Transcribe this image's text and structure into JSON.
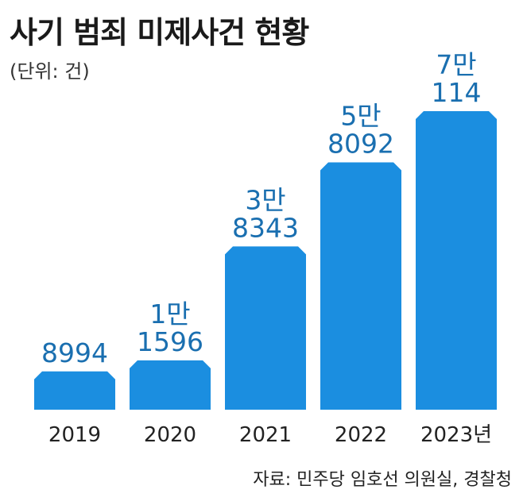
{
  "header": {
    "title": "사기 범죄 미제사건 현황",
    "unit": "(단위: 건)"
  },
  "footer": {
    "source": "자료: 민주당 임호선 의원실, 경찰청"
  },
  "colors": {
    "bar": "#1b8ee0",
    "value_text": "#1a6fb0"
  },
  "chart_data": {
    "type": "bar",
    "title": "사기 범죄 미제사건 현황",
    "unit": "(단위: 건)",
    "categories": [
      "2019",
      "2020",
      "2021",
      "2022",
      "2023년"
    ],
    "values": [
      8994,
      11596,
      38343,
      58092,
      70114
    ],
    "value_labels": [
      [
        "8994"
      ],
      [
        "1만",
        "1596"
      ],
      [
        "3만",
        "8343"
      ],
      [
        "5만",
        "8092"
      ],
      [
        "7만",
        "114"
      ]
    ],
    "ylim": [
      0,
      70114
    ],
    "grid": false,
    "legend": "none"
  }
}
